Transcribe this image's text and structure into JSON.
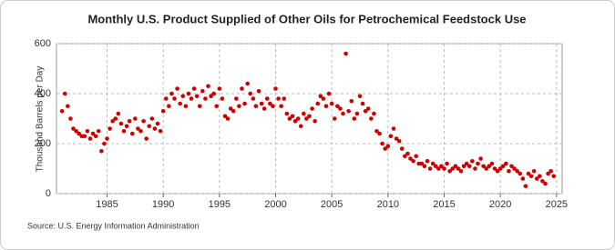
{
  "chart_data": {
    "type": "scatter",
    "title": "Monthly U.S. Product Supplied of Other Oils for Petrochemical Feedstock Use",
    "y_label": "Thousand Barrels per Day",
    "source": "Source: U.S. Energy Information Administration",
    "color": "#cc0000",
    "grid": true,
    "xlim": [
      1980.5,
      2025.5
    ],
    "xticks": [
      1985,
      1990,
      1995,
      2000,
      2005,
      2010,
      2015,
      2020,
      2025
    ],
    "ylim": [
      0,
      600
    ],
    "yticks": [
      0,
      200,
      400,
      600
    ],
    "x": [
      1981,
      1981.25,
      1981.5,
      1981.75,
      1982,
      1982.25,
      1982.5,
      1982.75,
      1983,
      1983.25,
      1983.5,
      1983.75,
      1984,
      1984.25,
      1984.5,
      1984.75,
      1985,
      1985.25,
      1985.5,
      1985.75,
      1986,
      1986.25,
      1986.5,
      1986.75,
      1987,
      1987.25,
      1987.5,
      1987.75,
      1988,
      1988.25,
      1988.5,
      1988.75,
      1989,
      1989.25,
      1989.5,
      1989.75,
      1990,
      1990.25,
      1990.5,
      1990.75,
      1991,
      1991.25,
      1991.5,
      1991.75,
      1992,
      1992.25,
      1992.5,
      1992.75,
      1993,
      1993.25,
      1993.5,
      1993.75,
      1994,
      1994.25,
      1994.5,
      1994.75,
      1995,
      1995.25,
      1995.5,
      1995.75,
      1996,
      1996.25,
      1996.5,
      1996.75,
      1997,
      1997.25,
      1997.5,
      1997.75,
      1998,
      1998.25,
      1998.5,
      1998.75,
      1999,
      1999.25,
      1999.5,
      1999.75,
      2000,
      2000.25,
      2000.5,
      2000.75,
      2001,
      2001.25,
      2001.5,
      2001.75,
      2002,
      2002.25,
      2002.5,
      2002.75,
      2003,
      2003.25,
      2003.5,
      2003.75,
      2004,
      2004.25,
      2004.5,
      2004.75,
      2005,
      2005.25,
      2005.5,
      2005.75,
      2006,
      2006.25,
      2006.5,
      2006.75,
      2007,
      2007.25,
      2007.5,
      2007.75,
      2008,
      2008.25,
      2008.5,
      2008.75,
      2009,
      2009.25,
      2009.5,
      2009.75,
      2010,
      2010.25,
      2010.5,
      2010.75,
      2011,
      2011.25,
      2011.5,
      2011.75,
      2012,
      2012.25,
      2012.5,
      2012.75,
      2013,
      2013.25,
      2013.5,
      2013.75,
      2014,
      2014.25,
      2014.5,
      2014.75,
      2015,
      2015.25,
      2015.5,
      2015.75,
      2016,
      2016.25,
      2016.5,
      2016.75,
      2017,
      2017.25,
      2017.5,
      2017.75,
      2018,
      2018.25,
      2018.5,
      2018.75,
      2019,
      2019.25,
      2019.5,
      2019.75,
      2020,
      2020.25,
      2020.5,
      2020.75,
      2021,
      2021.25,
      2021.5,
      2021.75,
      2022,
      2022.25,
      2022.5,
      2022.75,
      2023,
      2023.25,
      2023.5,
      2023.75,
      2024,
      2024.25,
      2024.5,
      2024.75
    ],
    "values": [
      330,
      400,
      350,
      300,
      260,
      250,
      240,
      230,
      230,
      250,
      220,
      240,
      230,
      250,
      170,
      200,
      220,
      260,
      290,
      300,
      320,
      280,
      250,
      270,
      290,
      240,
      300,
      260,
      250,
      290,
      220,
      270,
      300,
      260,
      280,
      250,
      330,
      380,
      350,
      400,
      380,
      420,
      360,
      390,
      350,
      400,
      380,
      420,
      390,
      350,
      410,
      380,
      430,
      390,
      400,
      350,
      420,
      380,
      310,
      300,
      340,
      330,
      380,
      350,
      420,
      360,
      440,
      400,
      380,
      350,
      410,
      360,
      340,
      380,
      360,
      350,
      420,
      380,
      350,
      380,
      320,
      300,
      310,
      290,
      300,
      270,
      320,
      300,
      310,
      340,
      290,
      360,
      390,
      380,
      350,
      400,
      360,
      300,
      350,
      340,
      320,
      560,
      330,
      370,
      300,
      320,
      390,
      360,
      330,
      340,
      300,
      320,
      250,
      240,
      200,
      180,
      190,
      230,
      260,
      220,
      210,
      180,
      150,
      160,
      140,
      130,
      150,
      120,
      120,
      110,
      130,
      100,
      120,
      110,
      100,
      110,
      100,
      120,
      90,
      100,
      110,
      100,
      90,
      110,
      120,
      110,
      130,
      100,
      120,
      140,
      110,
      100,
      110,
      120,
      100,
      90,
      100,
      110,
      120,
      90,
      110,
      100,
      90,
      80,
      60,
      30,
      80,
      70,
      90,
      60,
      70,
      50,
      40,
      80,
      90,
      70
    ]
  }
}
